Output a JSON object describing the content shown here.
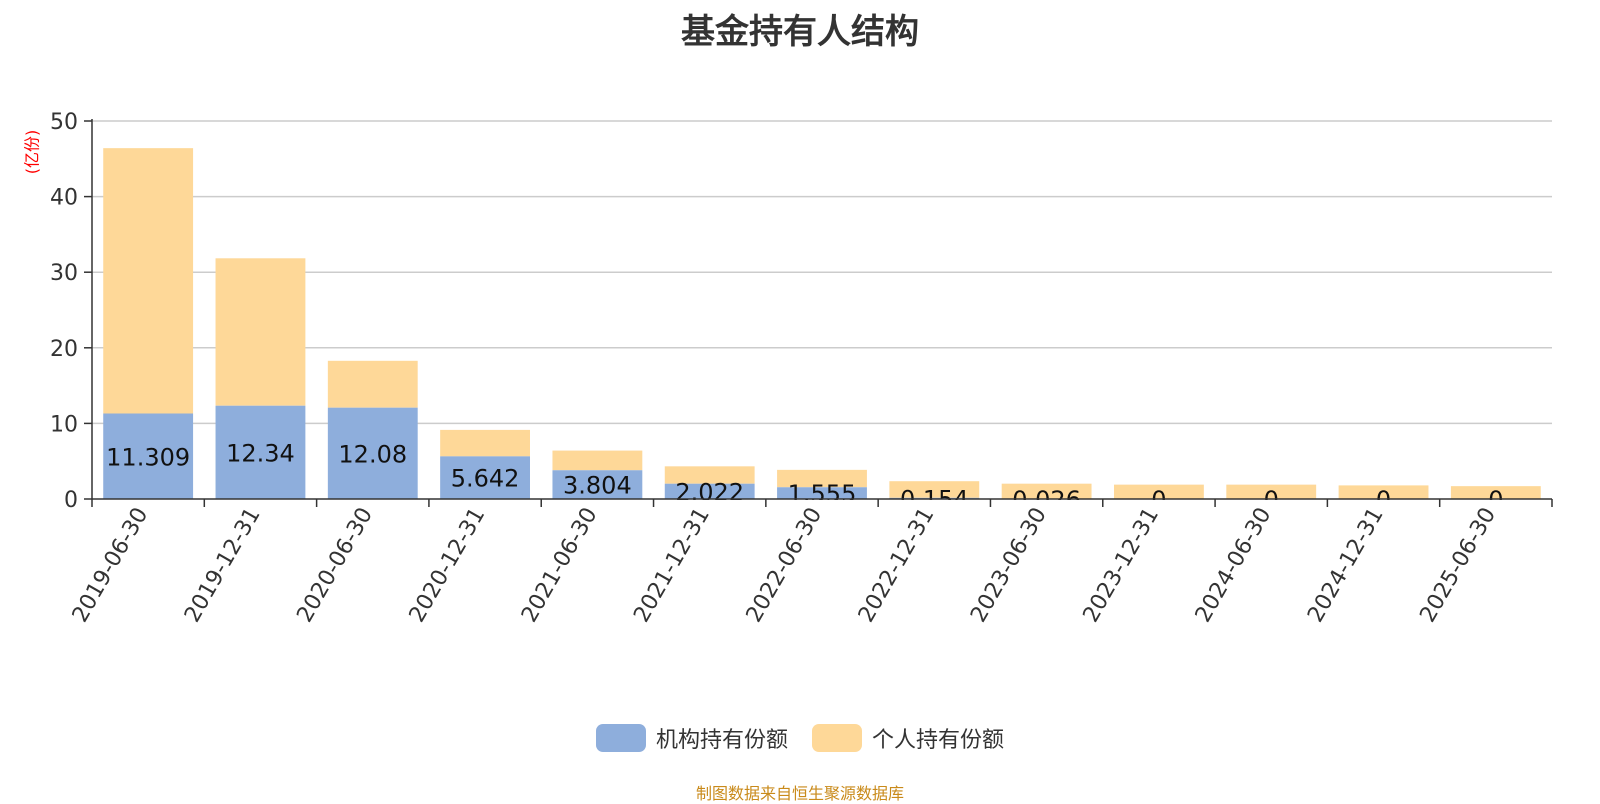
{
  "chart_data": {
    "type": "bar",
    "stacked": true,
    "title": "基金持有人结构",
    "ylabel": "(亿份)",
    "ylim": [
      0,
      50
    ],
    "yticks": [
      0,
      10,
      20,
      30,
      40,
      50
    ],
    "grid": true,
    "legend_position": "bottom",
    "categories": [
      "2019-06-30",
      "2019-12-31",
      "2020-06-30",
      "2020-12-31",
      "2021-06-30",
      "2021-12-31",
      "2022-06-30",
      "2022-12-31",
      "2023-06-30",
      "2023-12-31",
      "2024-06-30",
      "2024-12-31",
      "2025-06-30"
    ],
    "series": [
      {
        "name": "机构持有份额",
        "color": "#8eaedc",
        "values": [
          11.309,
          12.34,
          12.08,
          5.642,
          3.804,
          2.022,
          1.555,
          0.154,
          0.026,
          0,
          0,
          0,
          0
        ],
        "labels": [
          "11.309",
          "12.34",
          "12.08",
          "5.642",
          "3.804",
          "2.022",
          "1.555",
          "0.154",
          "0.026",
          "0",
          "0",
          "0",
          "0"
        ]
      },
      {
        "name": "个人持有份额",
        "color": "#fed898",
        "values": [
          35.1,
          19.5,
          6.2,
          3.5,
          2.6,
          2.3,
          2.3,
          2.2,
          2.0,
          1.9,
          1.9,
          1.8,
          1.7
        ]
      }
    ]
  },
  "source": "制图数据来自恒生聚源数据库"
}
